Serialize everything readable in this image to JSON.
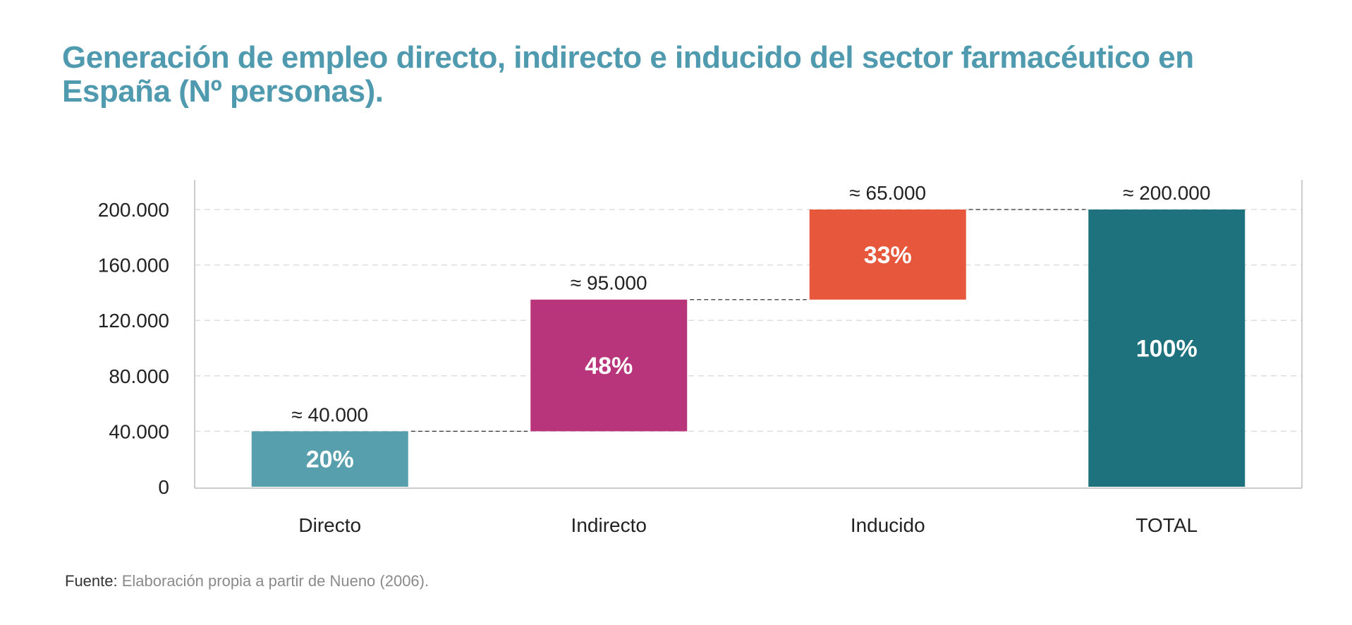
{
  "title": "Generación de empleo directo, indirecto e inducido del sector farmacéutico en España (Nº personas).",
  "source": {
    "label": "Fuente:",
    "text": " Elaboración propia a partir de Nueno (2006)."
  },
  "colors": {
    "title": "#4f9aae",
    "directo": "#589fae",
    "indirecto": "#b8357c",
    "inducido": "#e6573b",
    "total": "#1e727d",
    "grid": "#dddddd",
    "axis": "#cccccc",
    "connector": "#333333",
    "text": "#222222",
    "bar_label": "#ffffff"
  },
  "chart_data": {
    "type": "bar",
    "subtype": "waterfall",
    "categories": [
      "Directo",
      "Indirecto",
      "Inducido",
      "TOTAL"
    ],
    "bars": [
      {
        "category": "Directo",
        "start": 0,
        "end": 40000,
        "top_label": "≈ 40.000",
        "pct_label": "20%",
        "color_key": "directo"
      },
      {
        "category": "Indirecto",
        "start": 40000,
        "end": 135000,
        "top_label": "≈ 95.000",
        "pct_label": "48%",
        "color_key": "indirecto"
      },
      {
        "category": "Inducido",
        "start": 135000,
        "end": 200000,
        "top_label": "≈ 65.000",
        "pct_label": "33%",
        "color_key": "inducido"
      },
      {
        "category": "TOTAL",
        "start": 0,
        "end": 200000,
        "top_label": "≈ 200.000",
        "pct_label": "100%",
        "color_key": "total"
      }
    ],
    "yticks": [
      0,
      40000,
      80000,
      120000,
      160000,
      200000
    ],
    "ytick_labels": [
      "0",
      "40.000",
      "80.000",
      "120.000",
      "160.000",
      "200.000"
    ],
    "ylim": [
      0,
      220000
    ],
    "xlabel": "",
    "ylabel": "",
    "grid": true,
    "grid_style": "dashed",
    "connectors": true,
    "legend": "none"
  }
}
